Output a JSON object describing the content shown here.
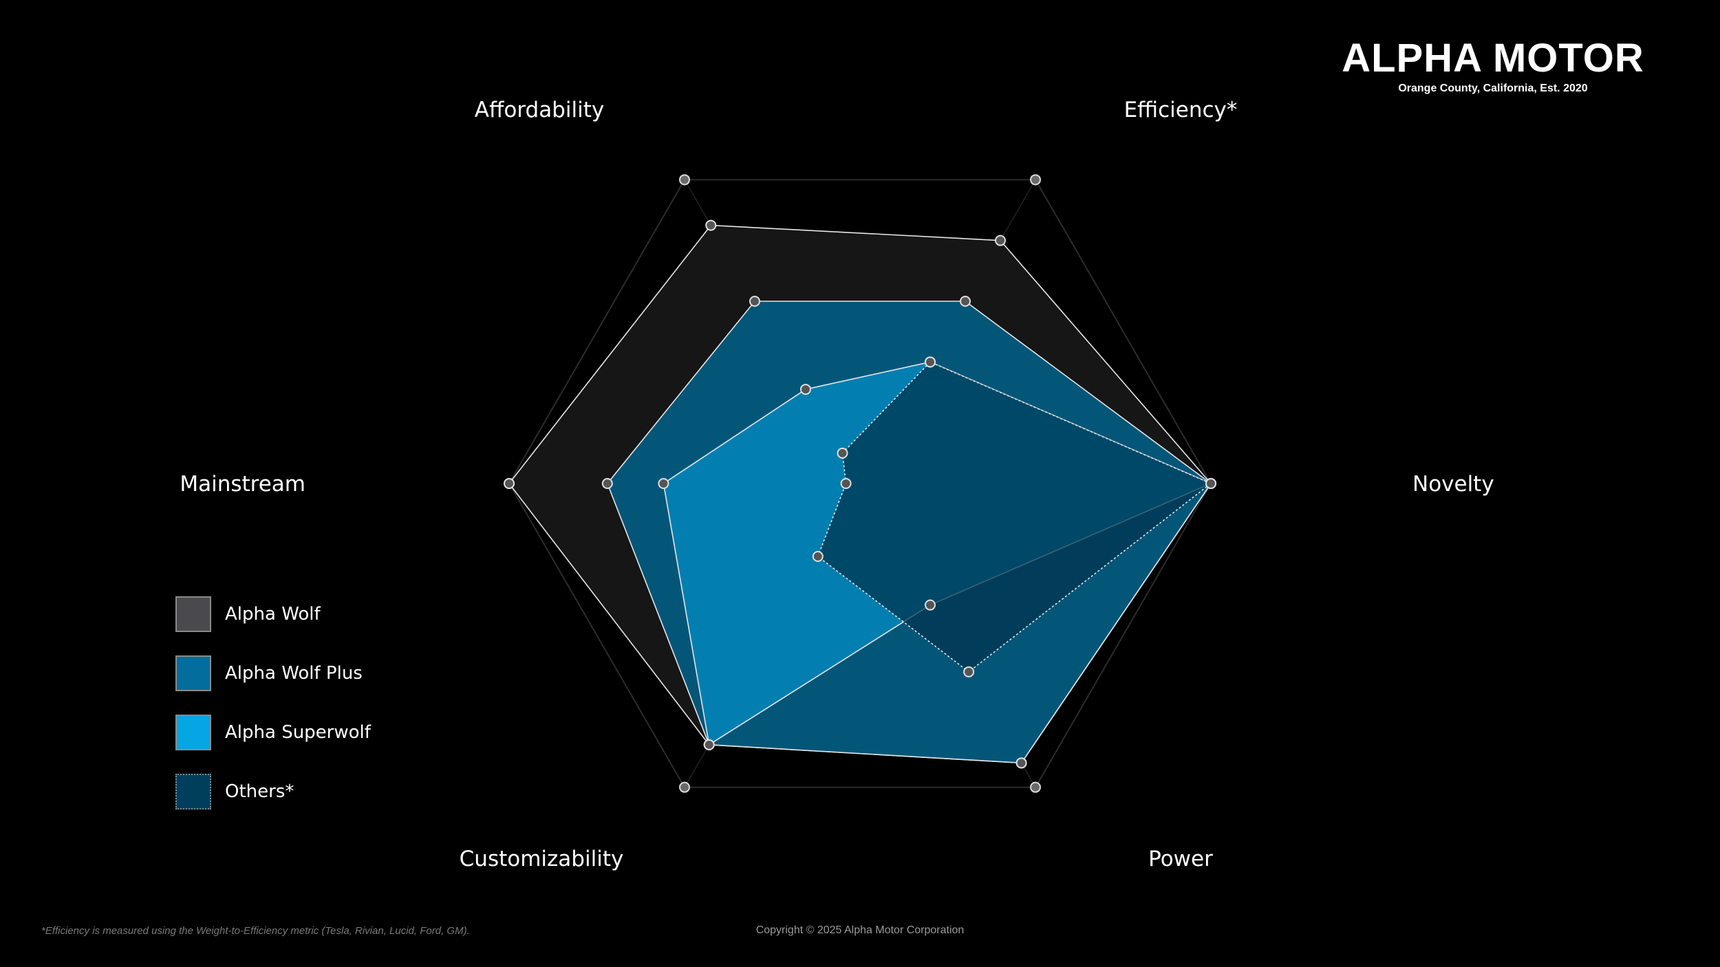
{
  "brand": {
    "name": "ALPHA MOTOR",
    "tagline": "Orange County, California, Est. 2020"
  },
  "chart_data": {
    "type": "radar",
    "axes": [
      "Affordability",
      "Efficiency*",
      "Novelty",
      "Power",
      "Customizability",
      "Mainstream"
    ],
    "range": [
      0,
      1
    ],
    "grid": true,
    "legend_position": "left",
    "series": [
      {
        "name": "Alpha Wolf",
        "values": [
          0.85,
          0.8,
          1.0,
          0.92,
          0.86,
          1.0
        ],
        "color": "#161616"
      },
      {
        "name": "Alpha Wolf Plus",
        "values": [
          0.6,
          0.6,
          1.0,
          0.92,
          0.86,
          0.72
        ],
        "color": "#035a7e"
      },
      {
        "name": "Alpha Superwolf",
        "values": [
          0.31,
          0.4,
          1.0,
          0.4,
          0.86,
          0.56
        ],
        "color": "#0284b6"
      },
      {
        "name": "Others*",
        "values": [
          0.1,
          0.4,
          1.0,
          0.62,
          0.24,
          0.04
        ],
        "color": "#003550"
      }
    ]
  },
  "footnote": "*Efficiency is measured using the Weight-to-Efficiency metric (Tesla, Rivian, Lucid, Ford, GM).",
  "copyright": "Copyright © 2025 Alpha Motor Corporation"
}
